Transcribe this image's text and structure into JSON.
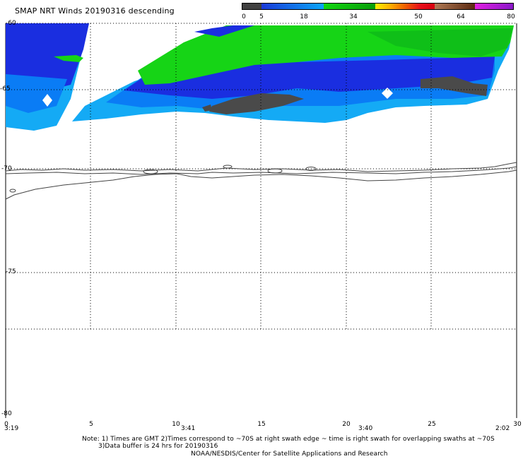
{
  "title": "SMAP NRT Winds  20190316 descending",
  "legend": {
    "segments": [
      {
        "color": "#404040",
        "from": 0,
        "to": 5
      },
      {
        "color": "#0b7cf3",
        "from": 5,
        "to": 18
      },
      {
        "color": "#19b019",
        "from": 18,
        "to": 34
      },
      {
        "color": "#e3221b",
        "from": 34,
        "to": 50
      },
      {
        "color": "#7a3f1c",
        "from": 50,
        "to": 64
      },
      {
        "color": "#b01ad6",
        "from": 64,
        "to": 80
      }
    ],
    "ticks": [
      "0",
      "5",
      "18",
      "34",
      "50",
      "64",
      "80"
    ]
  },
  "axes": {
    "y_labels": [
      "-60",
      "-65",
      "-70",
      "-75",
      "-80"
    ],
    "x_labels": [
      "0",
      "5",
      "10",
      "15",
      "20",
      "25",
      "30"
    ]
  },
  "times": [
    "3:19",
    "3:41",
    "3:40",
    "2:02"
  ],
  "colors": {
    "calm": "#4a4a4a",
    "dark_blue": "#1a2ee0",
    "mid_blue": "#0a7cf5",
    "light_blue": "#14aaf5",
    "green": "#16d416",
    "dark_green": "#0fbf18",
    "coast": "#444444"
  },
  "notes": {
    "line1": "Note: 1) Times are GMT 2)Times correspond to ~70S at right swath edge ~ time is right swath for overlapping swaths at ~70S",
    "line2": "3)Data buffer is 24 hrs for 20190316",
    "line3": "NOAA/NESDIS/Center for Satellite Applications and Research"
  }
}
